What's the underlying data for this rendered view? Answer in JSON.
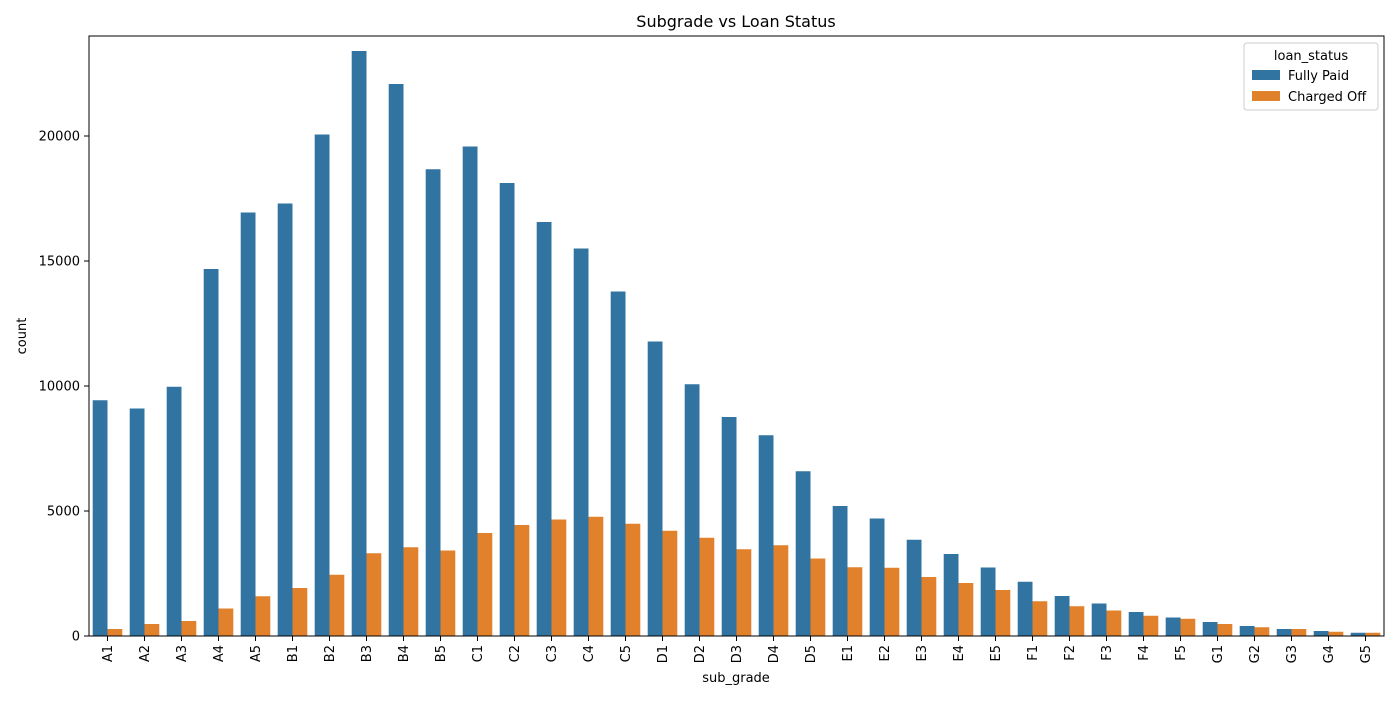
{
  "chart_data": {
    "type": "bar",
    "title": "Subgrade vs Loan Status",
    "xlabel": "sub_grade",
    "ylabel": "count",
    "ylim": [
      0,
      24000
    ],
    "yticks": [
      0,
      5000,
      10000,
      15000,
      20000
    ],
    "grid": false,
    "legend": {
      "title": "loan_status",
      "placement": "top-right"
    },
    "categories": [
      "A1",
      "A2",
      "A3",
      "A4",
      "A5",
      "B1",
      "B2",
      "B3",
      "B4",
      "B5",
      "C1",
      "C2",
      "C3",
      "C4",
      "C5",
      "D1",
      "D2",
      "D3",
      "D4",
      "D5",
      "E1",
      "E2",
      "E3",
      "E4",
      "E5",
      "F1",
      "F2",
      "F3",
      "F4",
      "F5",
      "G1",
      "G2",
      "G3",
      "G4",
      "G5"
    ],
    "series": [
      {
        "name": "Fully Paid",
        "color": "#3274a1",
        "values": [
          9430,
          9100,
          9970,
          14680,
          16940,
          17300,
          20060,
          23400,
          22080,
          18670,
          19580,
          18120,
          16560,
          15500,
          13780,
          11780,
          10070,
          8760,
          8030,
          6590,
          5200,
          4700,
          3850,
          3280,
          2740,
          2170,
          1600,
          1300,
          960,
          740,
          560,
          400,
          280,
          200,
          130
        ]
      },
      {
        "name": "Charged Off",
        "color": "#e1812c",
        "values": [
          280,
          480,
          600,
          1100,
          1590,
          1920,
          2450,
          3310,
          3550,
          3420,
          4120,
          4440,
          4660,
          4770,
          4490,
          4210,
          3930,
          3470,
          3630,
          3100,
          2750,
          2730,
          2360,
          2120,
          1840,
          1390,
          1190,
          1020,
          810,
          690,
          480,
          350,
          280,
          170,
          130
        ]
      }
    ]
  }
}
